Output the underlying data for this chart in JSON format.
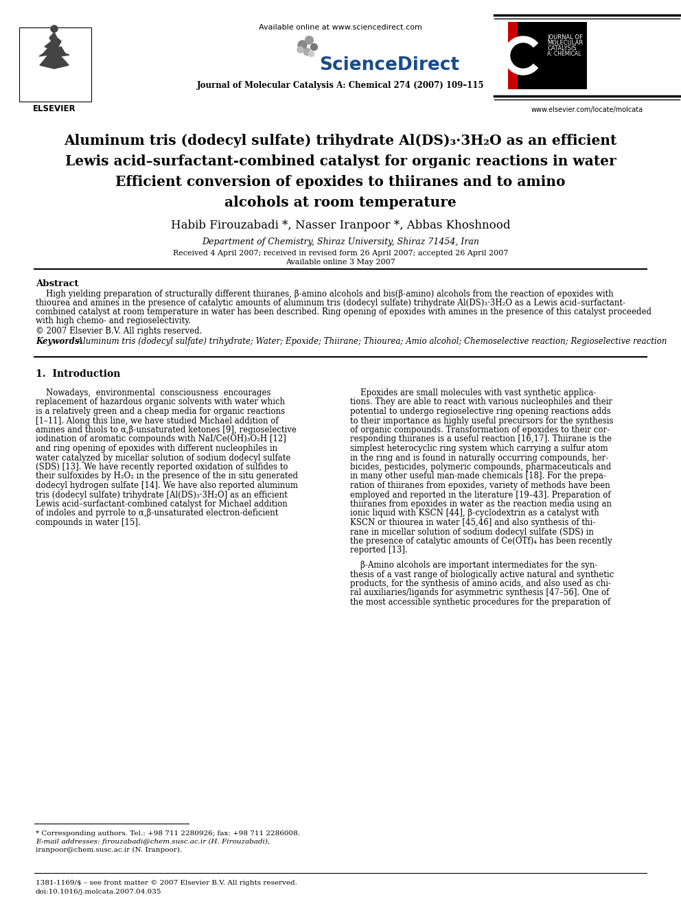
{
  "background_color": "#ffffff",
  "available_online": "Available online at www.sciencedirect.com",
  "journal_name": "Journal of Molecular Catalysis A: Chemical 274 (2007) 109–115",
  "website": "www.elsevier.com/locate/molcata",
  "title_lines": [
    "Aluminum tris (dodecyl sulfate) trihydrate Al(DS)₃·3H₂O as an efficient",
    "Lewis acid–surfactant-combined catalyst for organic reactions in water",
    "Efficient conversion of epoxides to thiiranes and to amino",
    "alcohols at room temperature"
  ],
  "authors": "Habib Firouzabadi *, Nasser Iranpoor *, Abbas Khoshnood",
  "affiliation": "Department of Chemistry, Shiraz University, Shiraz 71454, Iran",
  "received": "Received 4 April 2007; received in revised form 26 April 2007; accepted 26 April 2007",
  "available": "Available online 3 May 2007",
  "abstract_title": "Abstract",
  "abstract_lines": [
    "    High yielding preparation of structurally different thiiranes, β-amino alcohols and bis(β-amino) alcohols from the reaction of epoxides with",
    "thiourea and amines in the presence of catalytic amounts of aluminum tris (dodecyl sulfate) trihydrate Al(DS)₃·3H₂O as a Lewis acid–surfactant-",
    "combined catalyst at room temperature in water has been described. Ring opening of epoxides with amines in the presence of this catalyst proceeded",
    "with high chemo- and regioselectivity."
  ],
  "copyright": "© 2007 Elsevier B.V. All rights reserved.",
  "keywords_label": "Keywords:",
  "keywords_text": "  Aluminum tris (dodecyl sulfate) trihydrate; Water; Epoxide; Thiirane; Thiourea; Amio alcohol; Chemoselective reaction; Regioselective reaction",
  "section1_title": "1.  Introduction",
  "left_col_lines": [
    "    Nowadays,  environmental  consciousness  encourages",
    "replacement of hazardous organic solvents with water which",
    "is a relatively green and a cheap media for organic reactions",
    "[1–11]. Along this line, we have studied Michael addition of",
    "amines and thiols to α,β-unsaturated ketones [9], regioselective",
    "iodination of aromatic compounds with NaI/Ce(OH)₃O₂H [12]",
    "and ring opening of epoxides with different nucleophiles in",
    "water catalyzed by micellar solution of sodium dodecyl sulfate",
    "(SDS) [13]. We have recently reported oxidation of sulfides to",
    "their sulfoxides by H₂O₂ in the presence of the in situ generated",
    "dodecyl hydrogen sulfate [14]. We have also reported aluminum",
    "tris (dodecyl sulfate) trihydrate [Al(DS)₃·3H₂O] as an efficient",
    "Lewis acid–surfactant-combined catalyst for Michael addition",
    "of indoles and pyrrole to α,β-unsaturated electron-deficient",
    "compounds in water [15]."
  ],
  "right_col_lines": [
    "    Epoxides are small molecules with vast synthetic applica-",
    "tions. They are able to react with various nucleophiles and their",
    "potential to undergo regioselective ring opening reactions adds",
    "to their importance as highly useful precursors for the synthesis",
    "of organic compounds. Transformation of epoxides to their cor-",
    "responding thiiranes is a useful reaction [16,17]. Thiirane is the",
    "simplest heterocyclic ring system which carrying a sulfur atom",
    "in the ring and is found in naturally occurring compounds, her-",
    "bicides, pesticides, polymeric compounds, pharmaceuticals and",
    "in many other useful man-made chemicals [18]. For the prepa-",
    "ration of thiiranes from epoxides, variety of methods have been",
    "employed and reported in the literature [19–43]. Preparation of",
    "thiiranes from epoxides in water as the reaction media using an",
    "ionic liquid with KSCN [44], β-cyclodextrin as a catalyst with",
    "KSCN or thiourea in water [45,46] and also synthesis of thi-",
    "rane in micellar solution of sodium dodecyl sulfate (SDS) in",
    "the presence of catalytic amounts of Ce(OTf)₄ has been recently",
    "reported [13]."
  ],
  "right_col2_lines": [
    "    β-Amino alcohols are important intermediates for the syn-",
    "thesis of a vast range of biologically active natural and synthetic",
    "products, for the synthesis of amino acids, and also used as chi-",
    "ral auxiliaries/ligands for asymmetric synthesis [47–56]. One of",
    "the most accessible synthetic procedures for the preparation of"
  ],
  "footnote_line": "* Corresponding authors. Tel.: +98 711 2280926; fax: +98 711 2286008.",
  "footnote_email1": "E-mail addresses: firouzabadi@chem.susc.ac.ir (H. Firouzabadi),",
  "footnote_email2": "iranpoor@chem.susc.ac.ir (N. Iranpoor).",
  "footer_issn": "1381-1169/$ – see front matter © 2007 Elsevier B.V. All rights reserved.",
  "footer_doi": "doi:10.1016/j.molcata.2007.04.035",
  "elsevier_label": "ELSEVIER",
  "jmc_text": "JOURNAL OF\nMOLECULAR\nCATALYSIS\nA: CHEMICAL",
  "sciencedirect_text": "ScienceDirect"
}
